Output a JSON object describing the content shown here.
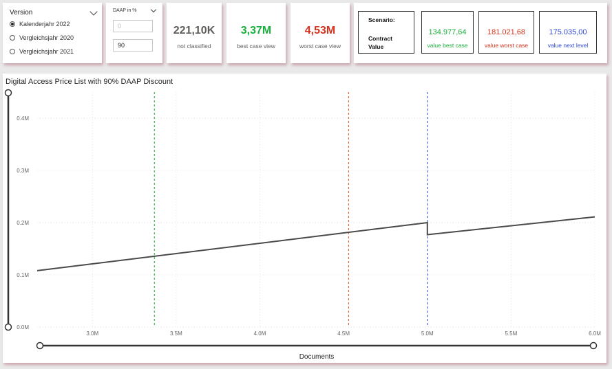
{
  "version_slicer": {
    "title": "Version",
    "options": [
      {
        "label": "Kalenderjahr 2022",
        "selected": true
      },
      {
        "label": "Vergleichsjahr 2020",
        "selected": false
      },
      {
        "label": "Vergleichsjahr 2021",
        "selected": false
      }
    ]
  },
  "daap": {
    "title": "DAAP in %",
    "min_value": "0",
    "value": "90"
  },
  "kpis": [
    {
      "value": "221,10K",
      "label": "not classified",
      "color": "#605e5c"
    },
    {
      "value": "3,37M",
      "label": "best case view",
      "color": "#1aaf3c"
    },
    {
      "value": "4,53M",
      "label": "worst case view",
      "color": "#d6321e"
    }
  ],
  "scenario": {
    "title_line1": "Scenario:",
    "title_line2": "Contract",
    "title_line3": "Value",
    "boxes": [
      {
        "value": "134.977,64",
        "label": "value best case",
        "color": "#1aaf3c"
      },
      {
        "value": "181.021,68",
        "label": "value worst case",
        "color": "#d6321e"
      },
      {
        "value": "175.035,00",
        "label": "value next level",
        "color": "#3047d6"
      }
    ]
  },
  "chart_data": {
    "type": "line",
    "title": "Digital Access Price List with 90% DAAP Discount",
    "xlabel": "Documents",
    "ylabel": "",
    "xlim": [
      2.67,
      6.0
    ],
    "ylim": [
      0,
      0.45
    ],
    "x_ticks": [
      {
        "value": 3.0,
        "label": "3.0M"
      },
      {
        "value": 3.5,
        "label": "3.5M"
      },
      {
        "value": 4.0,
        "label": "4.0M"
      },
      {
        "value": 4.5,
        "label": "4.5M"
      },
      {
        "value": 5.0,
        "label": "5.0M"
      },
      {
        "value": 5.5,
        "label": "5.5M"
      },
      {
        "value": 6.0,
        "label": "6.0M"
      }
    ],
    "y_ticks": [
      {
        "value": 0.0,
        "label": "0.0M"
      },
      {
        "value": 0.1,
        "label": "0.1M"
      },
      {
        "value": 0.2,
        "label": "0.2M"
      },
      {
        "value": 0.3,
        "label": "0.3M"
      },
      {
        "value": 0.4,
        "label": "0.4M"
      }
    ],
    "series": [
      {
        "color": "#4a4a4a",
        "points": [
          [
            2.67,
            0.108
          ],
          [
            5.0,
            0.2
          ],
          [
            5.0,
            0.177
          ],
          [
            6.0,
            0.211
          ]
        ]
      }
    ],
    "reference_lines": [
      {
        "x": 3.37,
        "color": "#3ab54a"
      },
      {
        "x": 4.53,
        "color": "#e0663a"
      },
      {
        "x": 5.0,
        "color": "#4a64d0"
      }
    ],
    "grid": true
  }
}
